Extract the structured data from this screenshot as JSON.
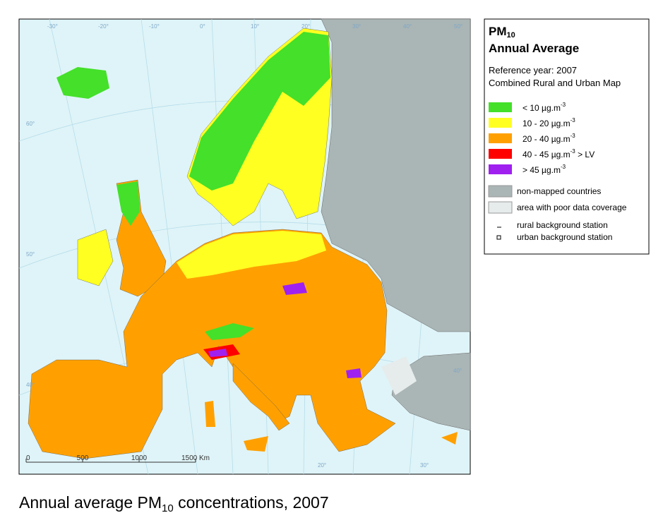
{
  "map": {
    "graticule_labels": {
      "top": [
        "-30°",
        "-20°",
        "-10°",
        "0°",
        "10°",
        "20°",
        "30°",
        "40°",
        "50°"
      ],
      "left": [
        "60°",
        "50°",
        "40°"
      ],
      "bottom": [
        "20°",
        "30°"
      ],
      "right": [
        "40°"
      ]
    },
    "scale_bar": [
      "0",
      "500",
      "1000",
      "1500 Km"
    ]
  },
  "legend": {
    "title": {
      "text": "PM",
      "sub": "10"
    },
    "subtitle": "Annual Average",
    "reference": "Reference year: 2007",
    "map_type": "Combined Rural and Urban Map",
    "classes": [
      {
        "text": "<  10  µg.m",
        "sup": "-3",
        "color": "#44e02a"
      },
      {
        "text": "10 - 20  µg.m",
        "sup": "-3",
        "color": "#ffff22"
      },
      {
        "text": "20 - 40  µg.m",
        "sup": "-3",
        "color": "#ffa000"
      },
      {
        "text": "40 - 45  µg.m",
        "sup": "-3",
        "after": " > LV",
        "color": "#ff0000"
      },
      {
        "text": ">  45  µg.m",
        "sup": "-3",
        "color": "#a020f0"
      }
    ],
    "areas": [
      {
        "text": "non-mapped countries",
        "color": "#aab5b5"
      },
      {
        "text": "area with poor data coverage",
        "color": "#e6ebeb"
      }
    ],
    "stations": [
      "rural background station",
      "urban background station"
    ]
  },
  "caption": {
    "text": "Annual average PM",
    "sub": "10",
    "after": " concentrations, 2007"
  }
}
